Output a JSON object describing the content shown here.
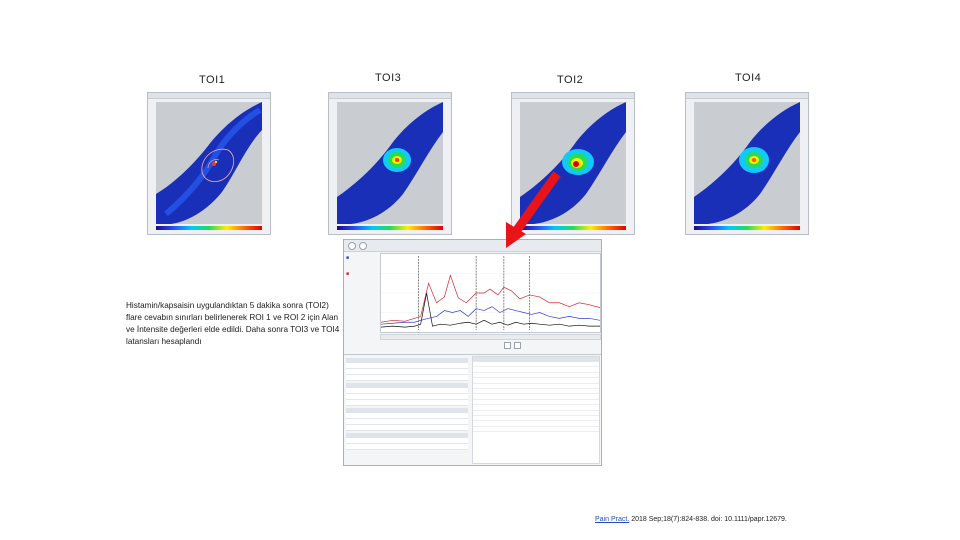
{
  "panels": [
    {
      "label": "TOI1"
    },
    {
      "label": "TOI3"
    },
    {
      "label": "TOI2"
    },
    {
      "label": "TOI4"
    }
  ],
  "caption": "Histamin/kapsaisin uygulandıktan 5 dakika sonra (TOI2) flare cevabın sınırları belirlenerek ROI 1 ve ROI 2 için Alan ve İntensite değerleri elde edildi. Daha sonra TOI3 ve TOI4 latansları hesaplandı",
  "citation": {
    "link_text": "Pain Pract.",
    "rest": " 2018 Sep;18(7):824-838. doi: 10.1111/papr.12679."
  },
  "colors": {
    "arrow": "#e8141a",
    "series_red": "#d7262b",
    "series_blue": "#2f3fd0",
    "series_black": "#111111"
  },
  "icons": [
    "zoom-in-icon",
    "zoom-out-icon",
    "play-icon",
    "stop-icon"
  ]
}
